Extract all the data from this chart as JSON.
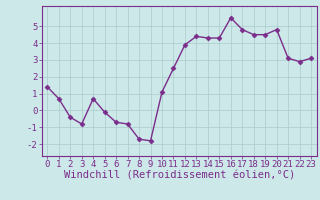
{
  "x": [
    0,
    1,
    2,
    3,
    4,
    5,
    6,
    7,
    8,
    9,
    10,
    11,
    12,
    13,
    14,
    15,
    16,
    17,
    18,
    19,
    20,
    21,
    22,
    23
  ],
  "y": [
    1.4,
    0.7,
    -0.4,
    -0.8,
    0.7,
    -0.1,
    -0.7,
    -0.8,
    -1.7,
    -1.8,
    1.1,
    2.5,
    3.9,
    4.4,
    4.3,
    4.3,
    5.5,
    4.8,
    4.5,
    4.5,
    4.8,
    3.1,
    2.9,
    3.1
  ],
  "line_color": "#7b2d8b",
  "marker": "D",
  "marker_size": 2.5,
  "bg_color": "#cce8e8",
  "grid_color": "#aacccc",
  "xlabel": "Windchill (Refroidissement éolien,°C)",
  "xlim": [
    -0.5,
    23.5
  ],
  "ylim": [
    -2.7,
    6.2
  ],
  "yticks": [
    -2,
    -1,
    0,
    1,
    2,
    3,
    4,
    5
  ],
  "xticks": [
    0,
    1,
    2,
    3,
    4,
    5,
    6,
    7,
    8,
    9,
    10,
    11,
    12,
    13,
    14,
    15,
    16,
    17,
    18,
    19,
    20,
    21,
    22,
    23
  ],
  "tick_color": "#7b2d8b",
  "label_color": "#7b2d8b",
  "axis_color": "#7b2d8b",
  "font_size": 6.5,
  "xlabel_fontsize": 7.5,
  "line_width": 1.0
}
